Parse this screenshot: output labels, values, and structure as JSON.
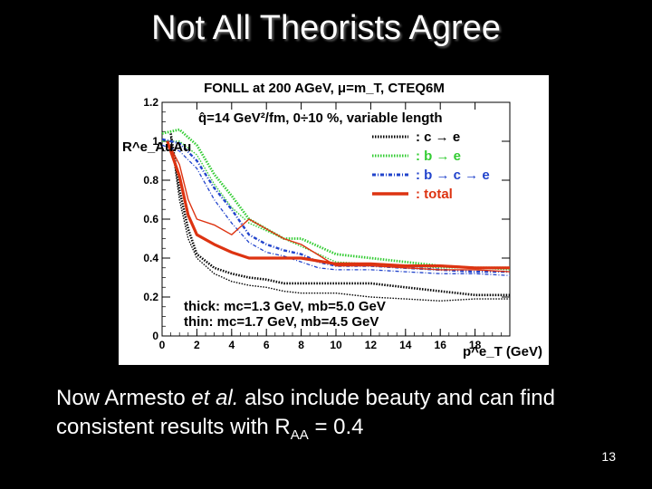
{
  "slide": {
    "title": "Not All Theorists Agree",
    "caption_pre": "Now Armesto ",
    "caption_italic": "et al.",
    "caption_mid": " also include beauty and can find consistent results with R",
    "caption_sub": "AA",
    "caption_post": " = 0.4",
    "page_number": "13"
  },
  "chart_data": {
    "type": "line",
    "title": "FONLL at 200 AGeV, μ=m_T, CTEQ6M",
    "subtitle": "q̂=14 GeV²/fm, 0÷10 %, variable length",
    "ylabel": "R^e_AuAu",
    "xlabel": "p^e_T (GeV)",
    "xlim": [
      0,
      20
    ],
    "ylim": [
      0,
      1.2
    ],
    "x_ticks": [
      0,
      2,
      4,
      6,
      8,
      10,
      12,
      14,
      16,
      18
    ],
    "y_ticks": [
      0,
      0.2,
      0.4,
      0.6,
      0.8,
      1,
      1.2
    ],
    "legend": [
      {
        "label": ": c → e",
        "color": "#000000",
        "style": "dotted"
      },
      {
        "label": ": b → e",
        "color": "#33cc33",
        "style": "dotted"
      },
      {
        "label": ": b → c → e",
        "color": "#2244cc",
        "style": "dashdot"
      },
      {
        "label": ": total",
        "color": "#dd3311",
        "style": "solid"
      }
    ],
    "annotation_thick": "thick: mc=1.3 GeV, mb=5.0 GeV",
    "annotation_thin": "thin: mc=1.7 GeV, mb=4.5 GeV",
    "series": [
      {
        "name": "c → e (thick)",
        "color": "#000000",
        "dash": "1.5,1.5",
        "width": 2.6,
        "x": [
          0.5,
          1,
          1.5,
          2,
          3,
          4,
          5,
          6,
          7,
          8,
          10,
          12,
          14,
          16,
          18,
          20
        ],
        "y": [
          1.04,
          0.75,
          0.55,
          0.42,
          0.35,
          0.32,
          0.3,
          0.29,
          0.27,
          0.27,
          0.27,
          0.27,
          0.25,
          0.23,
          0.21,
          0.21
        ]
      },
      {
        "name": "c → e (thin)",
        "color": "#000000",
        "dash": "1.5,1.5",
        "width": 1.4,
        "x": [
          0.5,
          1,
          1.5,
          2,
          3,
          4,
          5,
          6,
          7,
          8,
          10,
          12,
          14,
          16,
          18,
          20
        ],
        "y": [
          1.02,
          0.7,
          0.5,
          0.4,
          0.32,
          0.28,
          0.26,
          0.25,
          0.23,
          0.22,
          0.22,
          0.2,
          0.19,
          0.18,
          0.19,
          0.19
        ]
      },
      {
        "name": "b → e (thick)",
        "color": "#33cc33",
        "dash": "1.5,1.5",
        "width": 2.8,
        "x": [
          0,
          1,
          2,
          3,
          4,
          5,
          6,
          7,
          8,
          9,
          10,
          12,
          14,
          16,
          18,
          20
        ],
        "y": [
          1.04,
          1.06,
          0.98,
          0.83,
          0.72,
          0.6,
          0.55,
          0.5,
          0.5,
          0.46,
          0.42,
          0.4,
          0.38,
          0.36,
          0.35,
          0.35
        ]
      },
      {
        "name": "b → e (thin)",
        "color": "#33cc33",
        "dash": "1.5,1.5",
        "width": 1.4,
        "x": [
          0,
          1,
          2,
          3,
          4,
          5,
          6,
          7,
          8,
          9,
          10,
          12,
          14,
          16,
          18,
          20
        ],
        "y": [
          1.0,
          1.0,
          0.93,
          0.78,
          0.66,
          0.58,
          0.54,
          0.5,
          0.46,
          0.42,
          0.38,
          0.37,
          0.36,
          0.35,
          0.35,
          0.34
        ]
      },
      {
        "name": "b → c → e (thick)",
        "color": "#2244cc",
        "dash": "4,2,1,2",
        "width": 2.4,
        "x": [
          0,
          1,
          2,
          3,
          4,
          5,
          6,
          7,
          8,
          9,
          10,
          12,
          14,
          16,
          18,
          20
        ],
        "y": [
          1.01,
          0.99,
          0.9,
          0.76,
          0.65,
          0.52,
          0.47,
          0.44,
          0.42,
          0.38,
          0.36,
          0.36,
          0.35,
          0.34,
          0.33,
          0.33
        ]
      },
      {
        "name": "b → c → e (thin)",
        "color": "#2244cc",
        "dash": "4,2,1,2",
        "width": 1.3,
        "x": [
          0,
          1,
          2,
          3,
          4,
          5,
          6,
          7,
          8,
          9,
          10,
          12,
          14,
          16,
          18,
          20
        ],
        "y": [
          0.98,
          0.95,
          0.86,
          0.7,
          0.58,
          0.48,
          0.43,
          0.41,
          0.38,
          0.35,
          0.34,
          0.34,
          0.33,
          0.32,
          0.32,
          0.31
        ]
      },
      {
        "name": "total (thick)",
        "color": "#dd3311",
        "dash": "",
        "width": 3.2,
        "x": [
          0.3,
          1,
          1.5,
          2,
          3,
          4,
          5,
          6,
          8,
          10,
          12,
          14,
          16,
          18,
          20
        ],
        "y": [
          1.0,
          0.82,
          0.62,
          0.52,
          0.47,
          0.43,
          0.4,
          0.4,
          0.4,
          0.37,
          0.37,
          0.36,
          0.36,
          0.35,
          0.35
        ]
      },
      {
        "name": "total (thin)",
        "color": "#dd3311",
        "dash": "",
        "width": 1.4,
        "x": [
          0.3,
          1,
          1.5,
          2,
          3,
          4,
          5,
          6,
          7,
          8,
          10,
          12,
          14,
          16,
          18,
          20
        ],
        "y": [
          1.0,
          0.88,
          0.7,
          0.6,
          0.57,
          0.52,
          0.6,
          0.55,
          0.5,
          0.47,
          0.36,
          0.36,
          0.35,
          0.34,
          0.34,
          0.33
        ]
      }
    ]
  }
}
